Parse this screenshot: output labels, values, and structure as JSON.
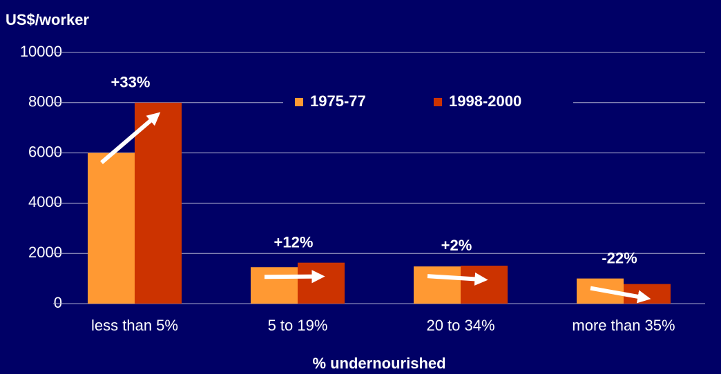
{
  "chart_data": {
    "type": "bar",
    "y_label": "US$/worker",
    "x_label": "% undernourished",
    "categories": [
      "less than 5%",
      "5 to 19%",
      "20 to 34%",
      "more than 35%"
    ],
    "series": [
      {
        "name": "1975-77",
        "color": "#ff9933",
        "values": [
          6000,
          1450,
          1480,
          1000
        ]
      },
      {
        "name": "1998-2000",
        "color": "#cc3300",
        "values": [
          8000,
          1630,
          1510,
          780
        ]
      }
    ],
    "annotations": [
      "+33%",
      "+12%",
      "+2%",
      "-22%"
    ],
    "ylim": [
      0,
      10000
    ],
    "yticks": [
      0,
      2000,
      4000,
      6000,
      8000,
      10000
    ],
    "grid": true
  }
}
